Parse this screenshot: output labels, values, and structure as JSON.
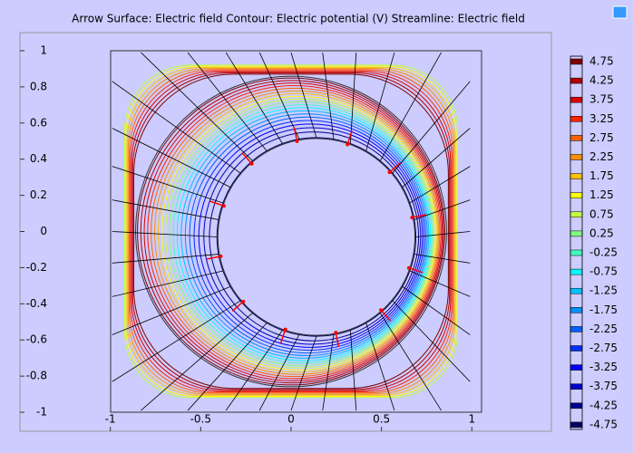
{
  "chart_data": {
    "type": "contour",
    "title": "Arrow Surface: Electric field  Contour: Electric potential (V)  Streamline: Electric field",
    "xlim": [
      -1.5,
      1.44
    ],
    "ylim": [
      -1.105,
      1.1
    ],
    "xticks": [
      -1,
      -0.5,
      0,
      0.5,
      1
    ],
    "yticks": [
      1,
      0.8,
      0.6,
      0.4,
      0.2,
      0,
      -0.2,
      -0.4,
      -0.6,
      -0.8,
      -1
    ],
    "levels": [
      4.75,
      4.25,
      3.75,
      3.25,
      2.75,
      2.25,
      1.75,
      1.25,
      0.75,
      0.25,
      -0.25,
      -0.75,
      -1.25,
      -1.75,
      -2.25,
      -2.75,
      -3.25,
      -3.75,
      -4.25,
      -4.75
    ],
    "colors": [
      "#800000",
      "#b00000",
      "#d80000",
      "#ff2000",
      "#ff6000",
      "#ff9000",
      "#ffc000",
      "#ffff00",
      "#c0ff40",
      "#80ff80",
      "#40ffc0",
      "#00ffff",
      "#00c0ff",
      "#0090ff",
      "#0060ff",
      "#0030ff",
      "#0000ff",
      "#0000c8",
      "#000090",
      "#000060"
    ]
  }
}
